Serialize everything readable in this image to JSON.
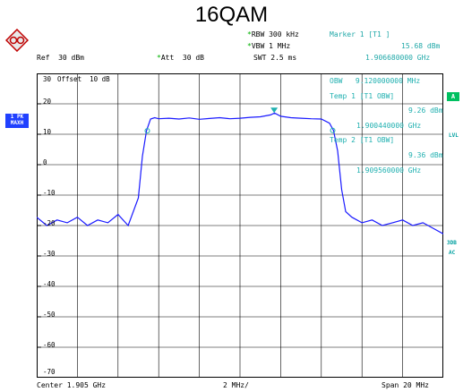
{
  "title": "16QAM",
  "header": {
    "rbw": "RBW 300 kHz",
    "vbw": "VBW 1 MHz",
    "swt": "SWT 2.5 ms",
    "ref": "Ref  30 dBm",
    "att": "Att  30 dB",
    "marker_title": "Marker 1 [T1 ]",
    "marker_level": "15.68 dBm",
    "marker_freq": "1.906680000 GHz"
  },
  "overlay": {
    "obw_label": "OBW",
    "obw_value": "9.120000000 MHz",
    "temp1_label": "Temp 1 [T1 OBW]",
    "temp1_level": "9.26 dBm",
    "temp1_freq": "1.900440000 GHz",
    "temp2_label": "Temp 2 [T1 OBW]",
    "temp2_level": "9.36 dBm",
    "temp2_freq": "1.909560000 GHz"
  },
  "side": {
    "trace_line1": "1 PK",
    "trace_line2": "MAXH",
    "a_box": "A",
    "lvl": "LVL",
    "three_db": "3DB",
    "ac": "AC"
  },
  "offset_label": "Offset  10 dB",
  "footer": {
    "center": "Center 1.905 GHz",
    "div": "2 MHz/",
    "span": "Span 20 MHz"
  },
  "colors": {
    "trace": "#1a1aff",
    "marker": "#20b0b0",
    "grid": "#000000",
    "overlay_text": "#20b0b0"
  },
  "chart_data": {
    "type": "line",
    "title": "16QAM",
    "xlabel": "",
    "ylabel": "",
    "x_unit": "GHz",
    "y_unit": "dBm",
    "xlim": [
      1.895,
      1.915
    ],
    "ylim": [
      -80,
      30
    ],
    "grid": true,
    "y_tick_labels": [
      "30",
      "20",
      "10",
      "0",
      "-10",
      "-20",
      "-30",
      "-40",
      "-50",
      "-60",
      "-70"
    ],
    "markers": [
      {
        "name": "1",
        "x": 1.90668,
        "y": 15.68
      },
      {
        "name": "Temp 1",
        "x": 1.90044,
        "y": 9.26
      },
      {
        "name": "Temp 2",
        "x": 1.90956,
        "y": 9.36
      }
    ],
    "series": [
      {
        "x": [
          1.895,
          1.8955,
          1.896,
          1.8965,
          1.897,
          1.8975,
          1.898,
          1.8985,
          1.899,
          1.8995,
          1.9,
          1.9002,
          1.9004,
          1.9006,
          1.9008,
          1.901,
          1.9015,
          1.902,
          1.9025,
          1.903,
          1.9035,
          1.904,
          1.9045,
          1.905,
          1.9055,
          1.906,
          1.9065,
          1.9067,
          1.907,
          1.9075,
          1.908,
          1.9085,
          1.909,
          1.9094,
          1.9096,
          1.9098,
          1.91,
          1.9102,
          1.9105,
          1.911,
          1.9115,
          1.912,
          1.9125,
          1.913,
          1.9135,
          1.914,
          1.9145,
          1.915
        ],
        "y": [
          -22,
          -25,
          -23,
          -24,
          -22,
          -25,
          -23,
          -24,
          -21,
          -25,
          -15,
          0,
          9.3,
          13.5,
          14,
          13.6,
          13.8,
          13.5,
          13.9,
          13.4,
          13.7,
          14,
          13.6,
          13.8,
          14.1,
          14.3,
          15,
          15.68,
          14.5,
          14,
          13.8,
          13.6,
          13.5,
          12,
          9.4,
          2,
          -12,
          -20,
          -22,
          -24,
          -23,
          -25,
          -24,
          -23,
          -25,
          -24,
          -26,
          -28
        ]
      }
    ]
  }
}
